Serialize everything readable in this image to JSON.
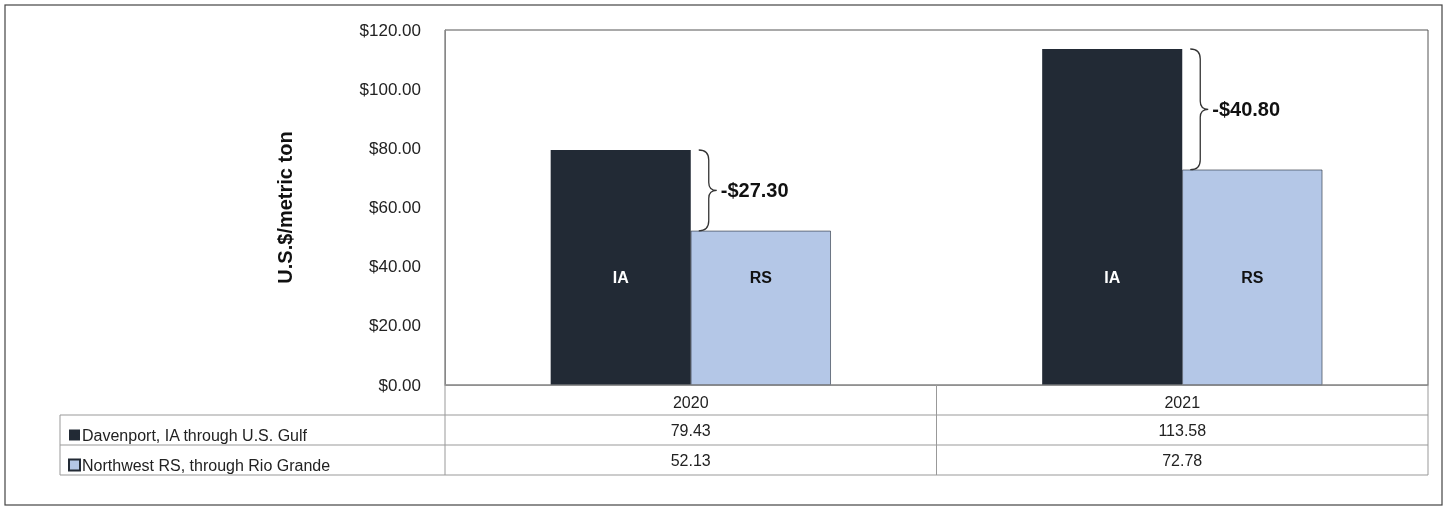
{
  "chart_data": {
    "type": "bar",
    "ylabel": "U.S.$/metric ton",
    "categories": [
      "2020",
      "2021"
    ],
    "series": [
      {
        "name": "Davenport, IA through U.S. Gulf",
        "color": "#222a35",
        "values": [
          79.43,
          113.58
        ]
      },
      {
        "name": "Northwest RS, through Rio Grande",
        "color": "#b4c7e7",
        "values": [
          52.13,
          72.78
        ]
      }
    ],
    "ylim": [
      0,
      120
    ],
    "yticks": [
      {
        "value": 0,
        "label": "$0.00"
      },
      {
        "value": 20,
        "label": "$20.00"
      },
      {
        "value": 40,
        "label": "$40.00"
      },
      {
        "value": 60,
        "label": "$60.00"
      },
      {
        "value": 80,
        "label": "$80.00"
      },
      {
        "value": 100,
        "label": "$100.00"
      },
      {
        "value": 120,
        "label": "$120.00"
      }
    ],
    "annotations": [
      "IA",
      "RS",
      "IA",
      "RS",
      {
        "text": "-$27.30",
        "x": "2020",
        "y": 65.78
      },
      {
        "text": "-$40.80",
        "x": "2021",
        "y": 93.18
      }
    ],
    "data_labels": true,
    "grid": false,
    "legend": "bottom left"
  }
}
